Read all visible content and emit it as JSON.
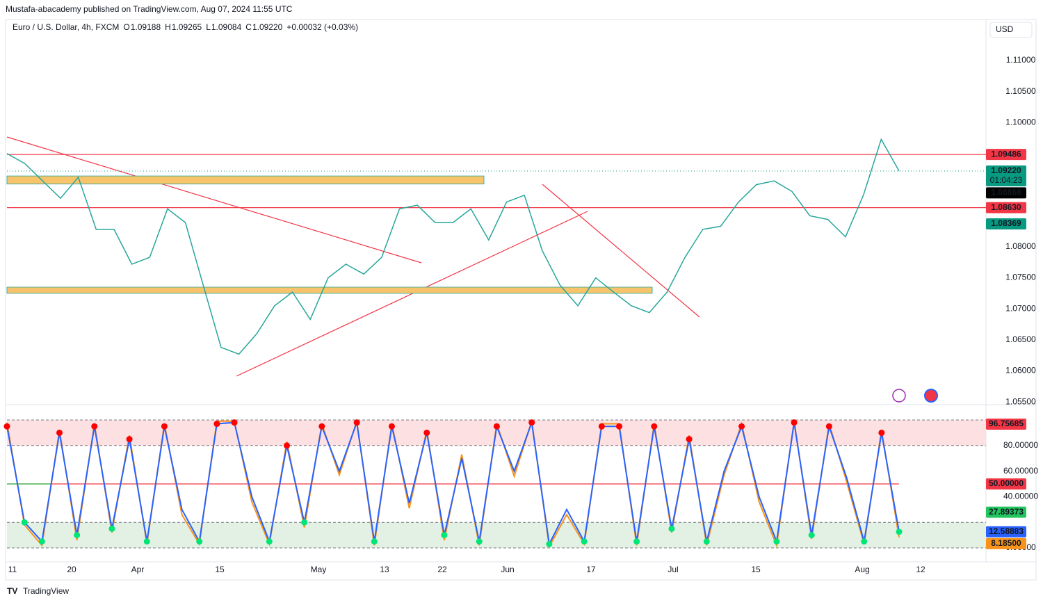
{
  "header": {
    "publisher": "Mustafa-abacademy published on TradingView.com, Aug 07, 2024 11:55 UTC",
    "symbol": "Euro / U.S. Dollar, 4h, FXCM",
    "ohlc": [
      {
        "key": "O",
        "value": "1.09188"
      },
      {
        "key": "H",
        "value": "1.09265"
      },
      {
        "key": "L",
        "value": "1.09084"
      },
      {
        "key": "C",
        "value": "1.09220"
      }
    ],
    "change": "+0.00032 (+0.03%)"
  },
  "currency_button": "USD",
  "footer_logo": "TradingView",
  "date_labels": [
    "11",
    "20",
    "Apr",
    "15",
    "May",
    "13",
    "22",
    "Jun",
    "17",
    "Jul",
    "15",
    "Aug",
    "12"
  ],
  "chart_data": [
    {
      "type": "line",
      "series": [
        {
          "name": "EURUSD",
          "color": "#26a69a",
          "values": [
            1.095,
            1.0934,
            1.0906,
            1.0878,
            1.0912,
            1.0828,
            1.0828,
            1.0772,
            1.0783,
            1.0861,
            1.0839,
            1.0738,
            1.0638,
            1.0627,
            1.066,
            1.0705,
            1.0727,
            1.0683,
            1.075,
            1.0772,
            1.0756,
            1.0783,
            1.0861,
            1.0867,
            1.0839,
            1.0839,
            1.0861,
            1.0811,
            1.0872,
            1.0883,
            1.0794,
            1.0738,
            1.0705,
            1.075,
            1.0727,
            1.0705,
            1.0694,
            1.0727,
            1.0783,
            1.0828,
            1.0833,
            1.0872,
            1.09,
            1.0906,
            1.0889,
            1.085,
            1.0844,
            1.0816,
            1.0883,
            1.0973,
            1.0922
          ]
        }
      ],
      "ylim": [
        1.0548,
        1.1166
      ],
      "yticks": [
        {
          "value": 1.11,
          "label": "1.11000"
        },
        {
          "value": 1.105,
          "label": "1.10500"
        },
        {
          "value": 1.1,
          "label": "1.10000"
        },
        {
          "value": 1.08,
          "label": "1.08000"
        },
        {
          "value": 1.075,
          "label": "1.07500"
        },
        {
          "value": 1.07,
          "label": "1.07000"
        },
        {
          "value": 1.065,
          "label": "1.06500"
        },
        {
          "value": 1.06,
          "label": "1.06000"
        },
        {
          "value": 1.055,
          "label": "1.05500"
        }
      ],
      "price_lines": [
        {
          "value": 1.09486,
          "color": "#f23645"
        },
        {
          "value": 1.0863,
          "color": "#f23645"
        }
      ],
      "zones": [
        {
          "from": 1.0914,
          "to": 1.0901,
          "color": "#f7c46c"
        },
        {
          "from": 1.0735,
          "to": 1.0725,
          "color": "#f7c46c"
        }
      ],
      "price_labels": [
        {
          "value": 1.09486,
          "color": "#f23645"
        },
        {
          "value": 1.0922,
          "label": "1.09220",
          "color": "#089981",
          "countdown": "01:04:23"
        },
        {
          "value": 1.08868,
          "color": "#000000"
        },
        {
          "value": 1.0863,
          "label": "1.08630",
          "color": "#f23645"
        },
        {
          "value": 1.08369,
          "color": "#089981"
        }
      ]
    },
    {
      "type": "line",
      "series": [
        {
          "name": "%K",
          "color": "#f7931a",
          "values": [
            98,
            18,
            2,
            92,
            6,
            97,
            12,
            88,
            3,
            97,
            26,
            3,
            99,
            99,
            36,
            3,
            83,
            16,
            97,
            57,
            99,
            2,
            97,
            31,
            92,
            6,
            73,
            2,
            97,
            56,
            99,
            1,
            26,
            3,
            97,
            97,
            2,
            97,
            12,
            88,
            2,
            57,
            97,
            36,
            2,
            99,
            7,
            97,
            52,
            3,
            92,
            8.185
          ]
        },
        {
          "name": "%D",
          "color": "#2962ff",
          "values": [
            95,
            20,
            5,
            90,
            10,
            95,
            15,
            85,
            5,
            95,
            30,
            5,
            97,
            98,
            40,
            5,
            80,
            20,
            95,
            60,
            98,
            5,
            95,
            35,
            90,
            10,
            70,
            5,
            95,
            60,
            98,
            3,
            30,
            5,
            95,
            95,
            5,
            95,
            15,
            85,
            5,
            60,
            95,
            40,
            5,
            98,
            10,
            95,
            55,
            5,
            90,
            12.58883
          ]
        }
      ],
      "ylim": [
        -4.35,
        104.35
      ],
      "yticks": [
        {
          "value": 80,
          "label": "80.00000"
        },
        {
          "value": 60,
          "label": "60.00000"
        },
        {
          "value": 40,
          "label": "40.00000"
        },
        {
          "value": 0,
          "label": "0.00000"
        }
      ],
      "bands": [
        {
          "from": 80,
          "to": 100,
          "color": "#fde0e2"
        },
        {
          "from": 0,
          "to": 20,
          "color": "#e3f1e4"
        }
      ],
      "midline": 50,
      "value_labels": [
        {
          "value": 96.75685,
          "color": "#f23645"
        },
        {
          "value": 50,
          "label": "50.00000",
          "color": "#f23645"
        },
        {
          "value": 27.89373,
          "color": "#22c55e"
        },
        {
          "value": 12.58883,
          "color": "#2962ff"
        },
        {
          "value": 8.185,
          "label": "8.18500",
          "color": "#f7931a"
        }
      ]
    }
  ]
}
